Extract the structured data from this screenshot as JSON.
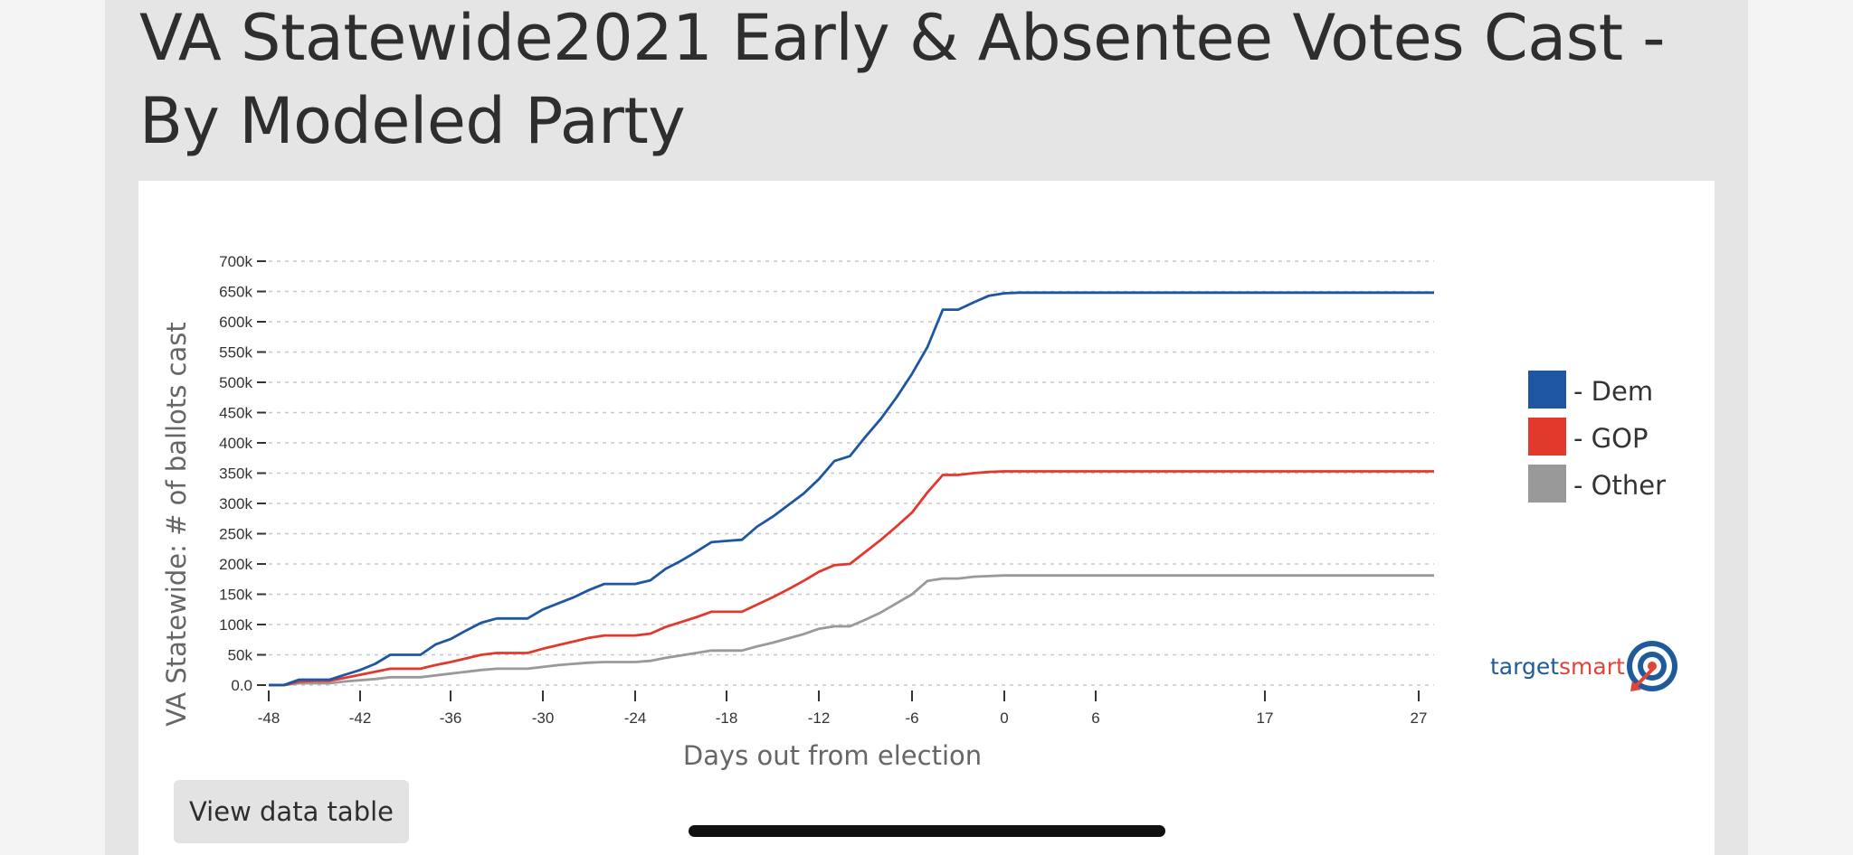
{
  "page": {
    "title": "VA Statewide2021 Early & Absentee Votes Cast - By Modeled Party",
    "view_data_table_label": "View data table"
  },
  "colors": {
    "dem": "#1f56a3",
    "gop": "#e2392d",
    "other": "#999999",
    "grid": "#c8c8c8"
  },
  "brand": {
    "name_part1": "target",
    "name_part2": "smart",
    "logo_icon": "target-bullseye-icon"
  },
  "chart_data": {
    "type": "line",
    "title": "",
    "xlabel": "Days out from election",
    "ylabel": "VA Statewide: # of ballots cast",
    "x_tick_labels": [
      "-48",
      "-42",
      "-36",
      "-30",
      "-24",
      "-18",
      "-12",
      "-6",
      "0",
      "6",
      "17",
      "27"
    ],
    "y_tick_labels": [
      "0.0",
      "50k",
      "100k",
      "150k",
      "200k",
      "250k",
      "300k",
      "350k",
      "400k",
      "450k",
      "500k",
      "550k",
      "600k",
      "650k",
      "700k"
    ],
    "ylim": [
      0,
      700000
    ],
    "grid": "horizontal dashed",
    "legend_position": "right",
    "x": [
      -48,
      -47,
      -46,
      -45,
      -44,
      -43,
      -42,
      -41,
      -40,
      -39,
      -38,
      -37,
      -36,
      -35,
      -34,
      -33,
      -32,
      -31,
      -30,
      -29,
      -28,
      -27,
      -26,
      -25,
      -24,
      -23,
      -22,
      -21,
      -20,
      -19,
      -18,
      -17,
      -16,
      -15,
      -14,
      -13,
      -12,
      -11,
      -10,
      -9,
      -8,
      -7,
      -6,
      -5,
      -4,
      -3,
      -2,
      -1,
      0,
      1,
      2,
      3,
      6,
      17,
      27,
      28
    ],
    "series": [
      {
        "name": "Dem",
        "values": [
          0,
          0,
          9000,
          9000,
          9000,
          17000,
          25000,
          35000,
          50000,
          50000,
          50000,
          67000,
          76000,
          90000,
          103000,
          110000,
          110000,
          110000,
          125000,
          135000,
          145000,
          157000,
          167000,
          167000,
          167000,
          173000,
          192000,
          205000,
          220000,
          236000,
          238000,
          240000,
          262000,
          278000,
          297000,
          316000,
          340000,
          370000,
          378000,
          410000,
          440000,
          475000,
          514000,
          558000,
          620000,
          620000,
          632000,
          643000,
          647000,
          648000,
          648000,
          648000,
          648000,
          648000,
          648000,
          648000
        ]
      },
      {
        "name": "GOP",
        "values": [
          0,
          0,
          6000,
          7000,
          7000,
          12000,
          17000,
          22000,
          27000,
          27000,
          27000,
          33000,
          38000,
          44000,
          50000,
          53000,
          53000,
          53000,
          60000,
          66000,
          72000,
          78000,
          82000,
          82000,
          82000,
          85000,
          96000,
          104000,
          112000,
          121000,
          121000,
          121000,
          133000,
          145000,
          158000,
          172000,
          187000,
          198000,
          200000,
          220000,
          240000,
          262000,
          285000,
          318000,
          347000,
          347000,
          350000,
          352000,
          353000,
          353000,
          353000,
          353000,
          353000,
          353000,
          353000,
          353000
        ]
      },
      {
        "name": "Other",
        "values": [
          0,
          0,
          3000,
          3000,
          3000,
          6000,
          8000,
          10000,
          13000,
          13000,
          13000,
          16000,
          19000,
          22000,
          25000,
          27000,
          27000,
          27000,
          30000,
          33000,
          35000,
          37000,
          38000,
          38000,
          38000,
          40000,
          45000,
          49000,
          53000,
          57000,
          57000,
          57000,
          64000,
          70000,
          77000,
          84000,
          93000,
          97000,
          97000,
          108000,
          120000,
          135000,
          150000,
          172000,
          176000,
          176000,
          179000,
          180000,
          181000,
          181000,
          181000,
          181000,
          181000,
          181000,
          181000,
          181000
        ]
      }
    ],
    "legend": [
      "- Dem",
      "- GOP",
      "- Other"
    ]
  }
}
